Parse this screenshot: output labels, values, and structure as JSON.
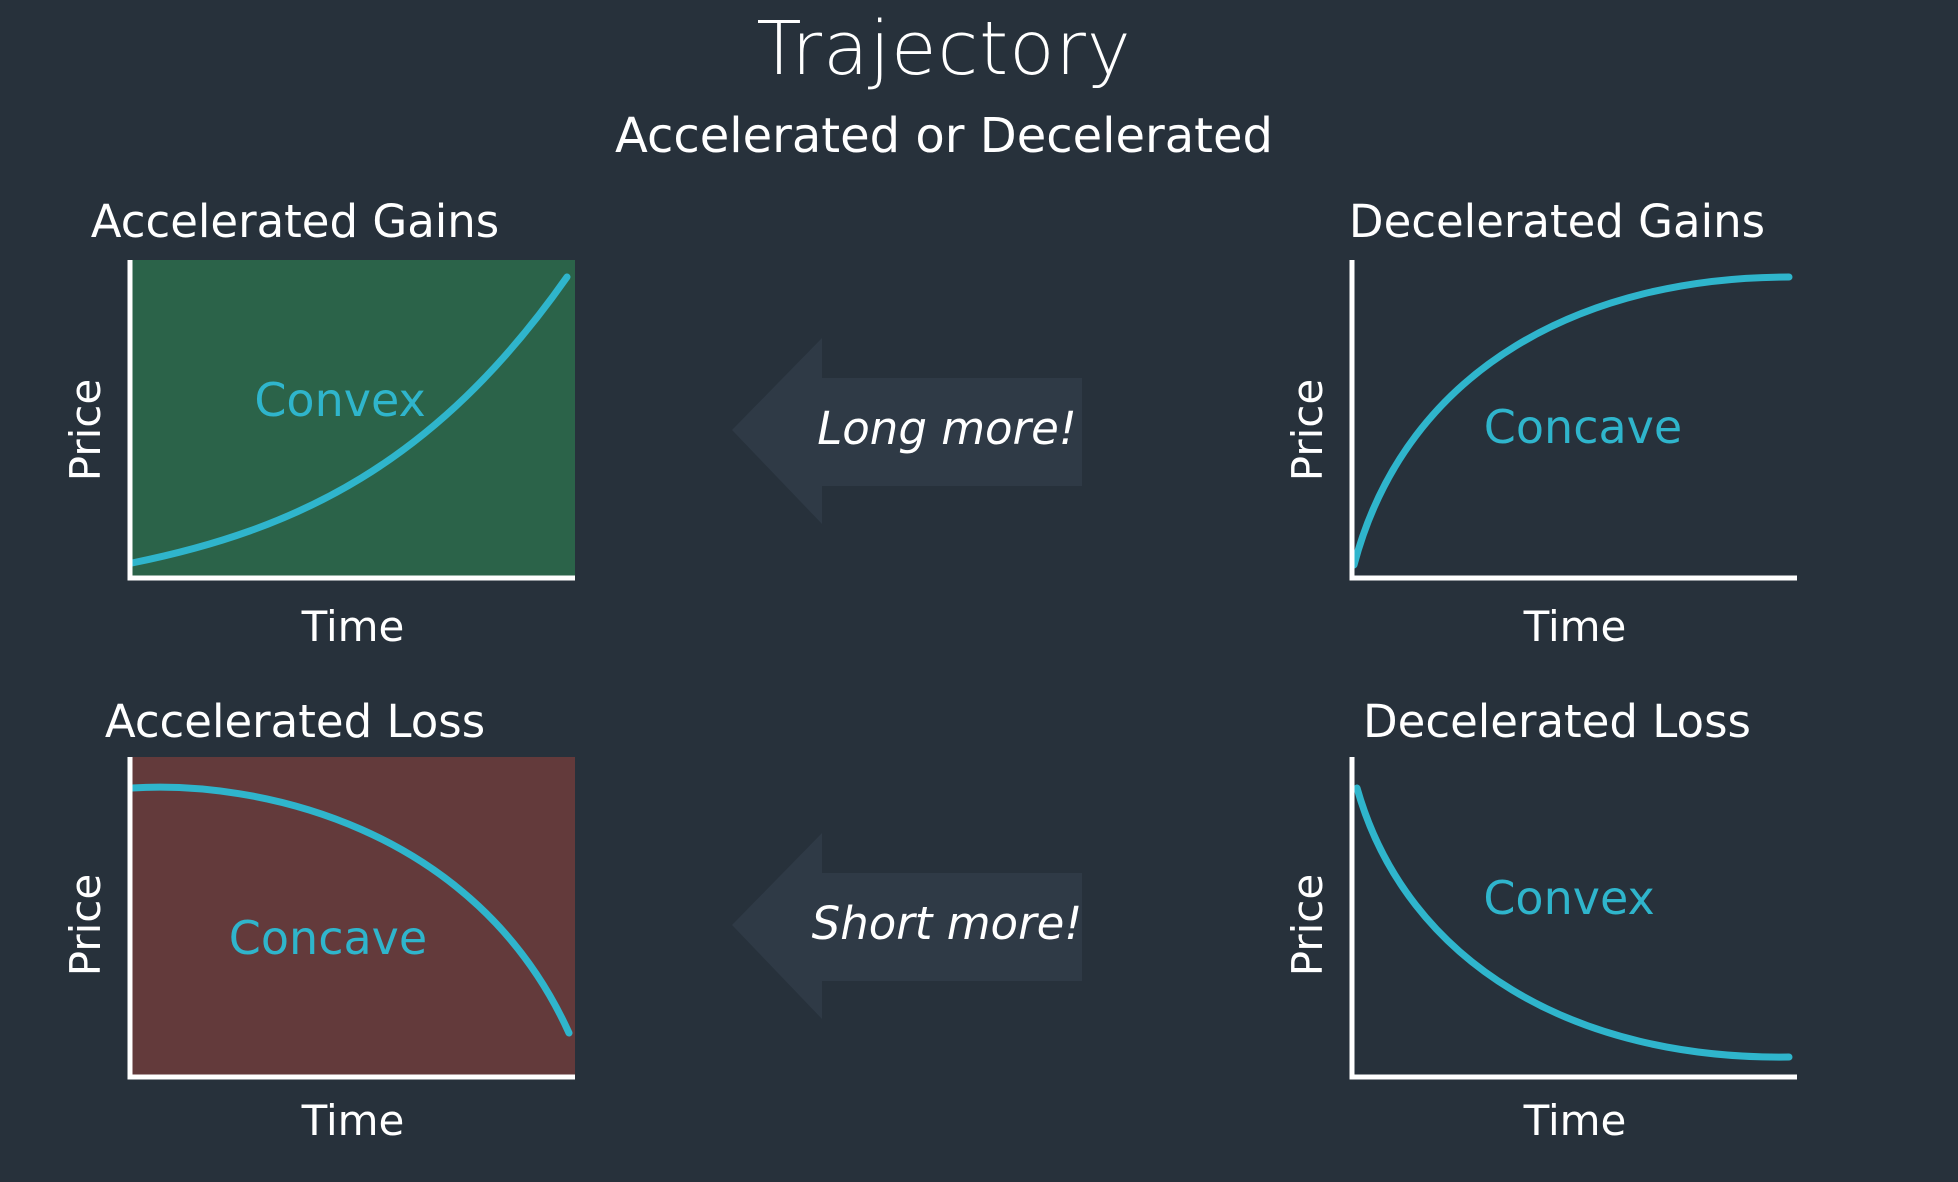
{
  "title": "Trajectory",
  "subtitle": "Accelerated or Decelerated",
  "colors": {
    "background": "#27313b",
    "curve": "#2fb5cc",
    "gains_fill": "#2b6349",
    "loss_fill": "#633a3b",
    "arrow": "#2f3a46"
  },
  "panels": {
    "accelerated_gains": {
      "title": "Accelerated Gains",
      "curve_label": "Convex",
      "xlabel": "Time",
      "ylabel": "Price"
    },
    "decelerated_gains": {
      "title": "Decelerated Gains",
      "curve_label": "Concave",
      "xlabel": "Time",
      "ylabel": "Price"
    },
    "accelerated_loss": {
      "title": "Accelerated Loss",
      "curve_label": "Concave",
      "xlabel": "Time",
      "ylabel": "Price"
    },
    "decelerated_loss": {
      "title": "Decelerated Loss",
      "curve_label": "Convex",
      "xlabel": "Time",
      "ylabel": "Price"
    }
  },
  "arrows": {
    "long": {
      "label": "Long more!"
    },
    "short": {
      "label": "Short more!"
    }
  }
}
